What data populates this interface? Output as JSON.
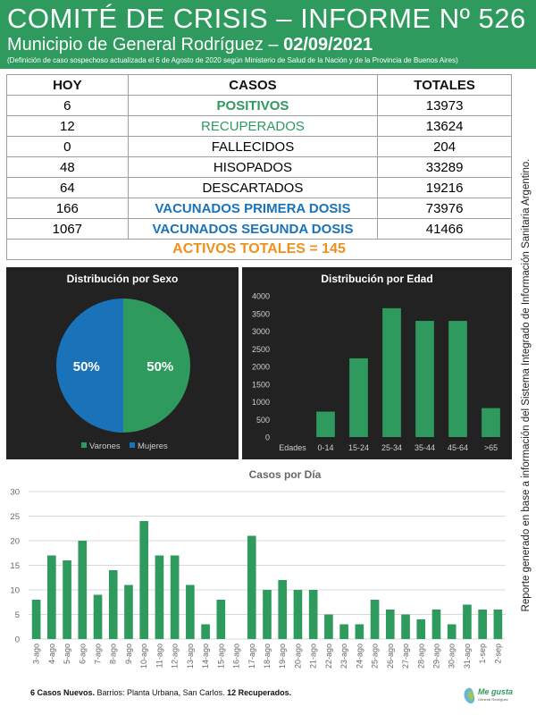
{
  "header": {
    "title": "COMITÉ DE CRISIS – INFORME Nº 526",
    "municipio": "Municipio de General Rodríguez –",
    "fecha": "02/09/2021",
    "nota": "(Definición de caso sospechoso actualizada el 6 de Agosto de 2020 según Ministerio de Salud de la Nación y de la Provincia de Buenos Aires)"
  },
  "side_note": "Reporte generado en base a información del Sistema Integrado de Información Sanitaria Argentino.",
  "table": {
    "headers": [
      "HOY",
      "CASOS",
      "TOTALES"
    ],
    "rows": [
      {
        "hoy": "6",
        "casos": "POSITIVOS",
        "totales": "13973",
        "style": "c-green"
      },
      {
        "hoy": "12",
        "casos": "RECUPERADOS",
        "totales": "13624",
        "style": "c-greenl"
      },
      {
        "hoy": "0",
        "casos": "FALLECIDOS",
        "totales": "204",
        "style": ""
      },
      {
        "hoy": "48",
        "casos": "HISOPADOS",
        "totales": "33289",
        "style": ""
      },
      {
        "hoy": "64",
        "casos": "DESCARTADOS",
        "totales": "19216",
        "style": ""
      },
      {
        "hoy": "166",
        "casos": "VACUNADOS PRIMERA DOSIS",
        "totales": "73976",
        "style": "c-blue"
      },
      {
        "hoy": "1067",
        "casos": "VACUNADOS SEGUNDA DOSIS",
        "totales": "41466",
        "style": "c-blue"
      }
    ],
    "activos": "ACTIVOS TOTALES = 145"
  },
  "colors": {
    "green": "#2e9a5e",
    "blue": "#1a73b9",
    "orange": "#f0901c",
    "panel": "#222222"
  },
  "chart_data": [
    {
      "type": "pie",
      "title": "Distribución  por Sexo",
      "labels": [
        "Varones",
        "Mujeres"
      ],
      "values": [
        50,
        50
      ],
      "value_labels": [
        "50%",
        "50%"
      ],
      "colors": [
        "#2e9a5e",
        "#1a73b9"
      ],
      "legend_position": "bottom"
    },
    {
      "type": "bar",
      "title": "Distribución  por Edad",
      "categories": [
        "Edades",
        "0-14",
        "15-24",
        "25-34",
        "35-44",
        "45-64",
        ">65"
      ],
      "values": [
        0,
        720,
        2230,
        3650,
        3290,
        3290,
        820
      ],
      "ylim": [
        0,
        4000
      ],
      "yticks": [
        0,
        500,
        1000,
        1500,
        2000,
        2500,
        3000,
        3500,
        4000
      ],
      "grid": false
    },
    {
      "type": "bar",
      "title": "Casos por Día",
      "categories": [
        "3-ago",
        "4-ago",
        "5-ago",
        "6-ago",
        "7-ago",
        "8-ago",
        "9-ago",
        "10-ago",
        "11-ago",
        "12-ago",
        "13-ago",
        "14-ago",
        "15-ago",
        "16-ago",
        "17-ago",
        "18-ago",
        "19-ago",
        "20-ago",
        "21-ago",
        "22-ago",
        "23-ago",
        "24-ago",
        "25-ago",
        "26-ago",
        "27-ago",
        "28-ago",
        "29-ago",
        "30-ago",
        "31-ago",
        "1-sep",
        "2-sep"
      ],
      "values": [
        8,
        17,
        16,
        20,
        9,
        14,
        11,
        24,
        17,
        17,
        11,
        3,
        8,
        0,
        21,
        10,
        12,
        10,
        10,
        5,
        3,
        3,
        8,
        6,
        5,
        4,
        6,
        3,
        7,
        6,
        6
      ],
      "ylim": [
        0,
        30
      ],
      "yticks": [
        0,
        5,
        10,
        15,
        20,
        25,
        30
      ],
      "grid": true
    }
  ],
  "footer": {
    "nuevos": "6 Casos Nuevos.",
    "barrios": " Barrios: Planta Urbana, San Carlos.",
    "recuperados": " 12 Recuperados."
  },
  "logo": {
    "text": "Me gusta",
    "subtext": "General Rodríguez"
  }
}
